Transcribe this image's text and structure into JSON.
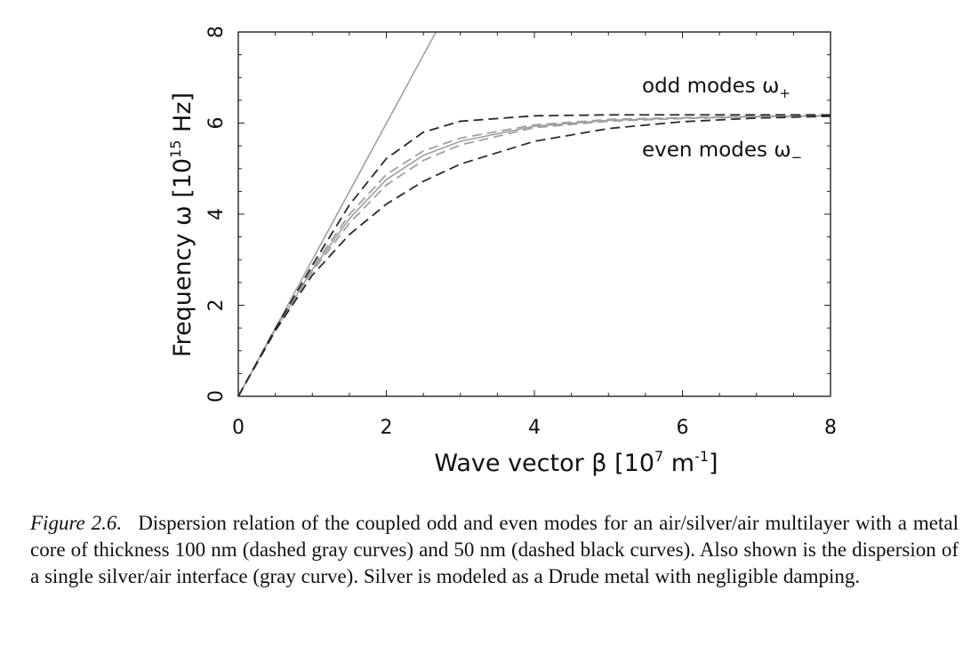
{
  "chart_data": {
    "type": "line",
    "xlabel_main": "Wave vector β [10",
    "xlabel_exp": "7",
    "xlabel_unit": " m",
    "xlabel_unit_exp": "-1",
    "xlabel_end": "]",
    "ylabel_main": "Frequency ω [10",
    "ylabel_exp": "15",
    "ylabel_end": " Hz]",
    "xlim": [
      0,
      8
    ],
    "ylim": [
      0,
      8
    ],
    "xticks": [
      "0",
      "2",
      "4",
      "6",
      "8"
    ],
    "yticks": [
      "0",
      "2",
      "4",
      "6",
      "8"
    ],
    "grid": false,
    "annotations": {
      "odd": "odd modes ω",
      "odd_sub": "+",
      "even": "even modes ω",
      "even_sub": "−"
    },
    "series": [
      {
        "style": "solid",
        "color": "#a0a0a0",
        "x": [
          0,
          2.67
        ],
        "y": [
          0,
          8
        ]
      },
      {
        "style": "solid",
        "color": "#a0a0a0",
        "x": [
          0,
          0.5,
          1.0,
          1.5,
          2.0,
          2.5,
          3.0,
          4.0,
          5.0,
          6.0,
          7.0,
          8.0
        ],
        "y": [
          0,
          1.47,
          2.78,
          3.9,
          4.76,
          5.29,
          5.6,
          5.93,
          6.06,
          6.11,
          6.14,
          6.16
        ]
      },
      {
        "style": "dashed",
        "color": "#a0a0a0",
        "x": [
          0,
          0.5,
          1.0,
          1.5,
          2.0,
          2.5,
          3.0,
          4.0,
          5.0,
          6.0,
          7.0,
          8.0
        ],
        "y": [
          0,
          1.48,
          2.82,
          3.99,
          4.87,
          5.39,
          5.67,
          5.96,
          6.08,
          6.12,
          6.15,
          6.16
        ]
      },
      {
        "style": "dashed",
        "color": "#a0a0a0",
        "x": [
          0,
          0.5,
          1.0,
          1.5,
          2.0,
          2.5,
          3.0,
          4.0,
          5.0,
          6.0,
          7.0,
          8.0
        ],
        "y": [
          0,
          1.46,
          2.74,
          3.8,
          4.64,
          5.18,
          5.52,
          5.9,
          6.04,
          6.1,
          6.14,
          6.16
        ]
      },
      {
        "style": "dashed",
        "color": "#2a2a2a",
        "x": [
          0,
          0.5,
          1.0,
          1.5,
          2.0,
          2.5,
          3.0,
          4.0,
          5.0,
          6.0,
          7.0,
          8.0
        ],
        "y": [
          0,
          1.48,
          2.88,
          4.2,
          5.22,
          5.8,
          6.04,
          6.16,
          6.18,
          6.18,
          6.18,
          6.18
        ]
      },
      {
        "style": "dashed",
        "color": "#2a2a2a",
        "x": [
          0,
          0.5,
          1.0,
          1.5,
          2.0,
          2.5,
          3.0,
          4.0,
          5.0,
          6.0,
          7.0,
          8.0
        ],
        "y": [
          0,
          1.44,
          2.66,
          3.55,
          4.22,
          4.72,
          5.1,
          5.6,
          5.88,
          6.03,
          6.11,
          6.15
        ]
      }
    ]
  },
  "caption": {
    "label": "Figure 2.6.",
    "text": "Dispersion relation of the coupled odd and even modes for an air/silver/air multilayer with a metal core of thickness 100 nm (dashed gray curves) and 50 nm (dashed black curves). Also shown is the dispersion of a single silver/air interface (gray curve). Silver is modeled as a Drude metal with negligible damping."
  }
}
